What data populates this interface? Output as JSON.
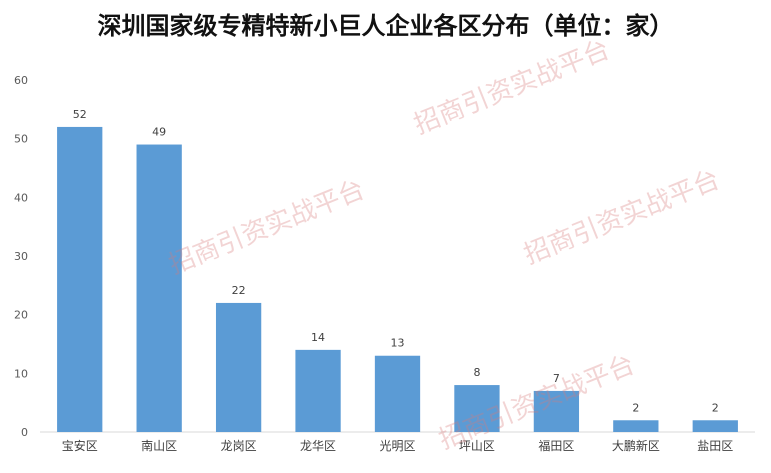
{
  "chart_data": {
    "type": "bar",
    "title": "深圳国家级专精特新小巨人企业各区分布（单位：家）",
    "categories": [
      "宝安区",
      "南山区",
      "龙岗区",
      "龙华区",
      "光明区",
      "坪山区",
      "福田区",
      "大鹏新区",
      "盐田区"
    ],
    "values": [
      52,
      49,
      22,
      14,
      13,
      8,
      7,
      2,
      2
    ],
    "xlabel": "",
    "ylabel": "",
    "ylim": [
      0,
      60
    ],
    "yticks": [
      0,
      10,
      20,
      30,
      40,
      50,
      60
    ],
    "grid": false,
    "legend": "none",
    "bar_color": "#5B9BD5",
    "data_labels": true
  },
  "watermark_text": "招商引资实战平台"
}
